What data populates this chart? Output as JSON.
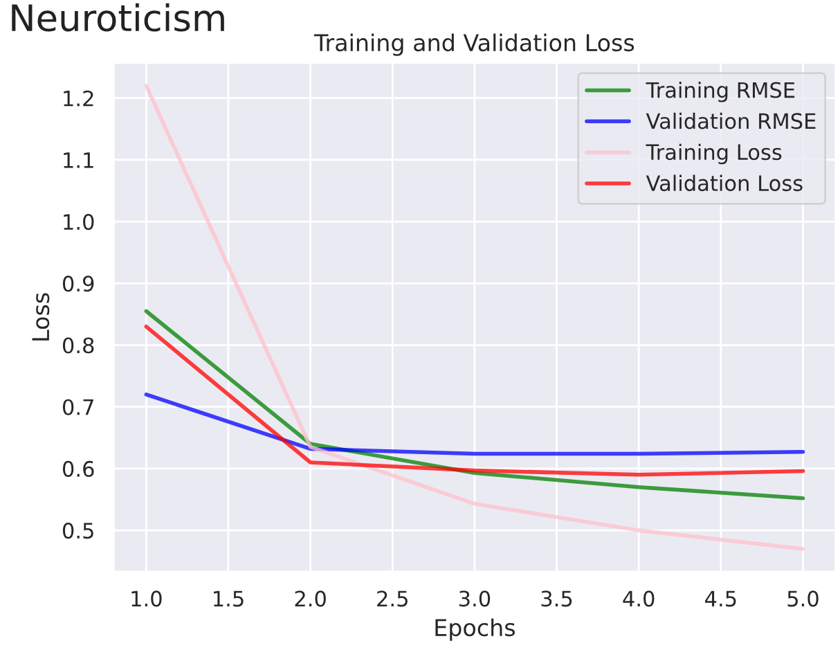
{
  "chart_data": {
    "type": "line",
    "title": "Training and Validation Loss",
    "subtitle": "Neuroticism",
    "xlabel": "Epochs",
    "ylabel": "Loss",
    "x": [
      1,
      2,
      3,
      4,
      5
    ],
    "series": [
      {
        "name": "Training RMSE",
        "color": "#008000",
        "values": [
          0.855,
          0.64,
          0.593,
          0.57,
          0.552
        ]
      },
      {
        "name": "Validation RMSE",
        "color": "#0000ff",
        "values": [
          0.72,
          0.632,
          0.624,
          0.624,
          0.627
        ]
      },
      {
        "name": "Training Loss",
        "color": "#ffc0cb",
        "values": [
          1.22,
          0.635,
          0.543,
          0.5,
          0.47
        ]
      },
      {
        "name": "Validation Loss",
        "color": "#ff0000",
        "values": [
          0.83,
          0.61,
          0.597,
          0.59,
          0.596
        ]
      }
    ],
    "xlim": [
      0.8,
      5.2
    ],
    "ylim": [
      0.4325,
      1.2575
    ],
    "xticks": [
      {
        "value": 1,
        "label": "1.0"
      },
      1.5,
      {
        "value": 2,
        "label": "2.0"
      },
      2.5,
      {
        "value": 3,
        "label": "3.0"
      },
      3.5,
      {
        "value": 4,
        "label": "4.0"
      },
      4.5,
      {
        "value": 5,
        "label": "5.0"
      }
    ],
    "yticks": [
      0.5,
      0.6,
      0.7,
      0.8,
      0.9,
      {
        "value": 1,
        "label": "1.0"
      },
      1.1,
      1.2
    ],
    "grid": true,
    "legend": "top right",
    "marker": "none",
    "line_style": "solid"
  }
}
